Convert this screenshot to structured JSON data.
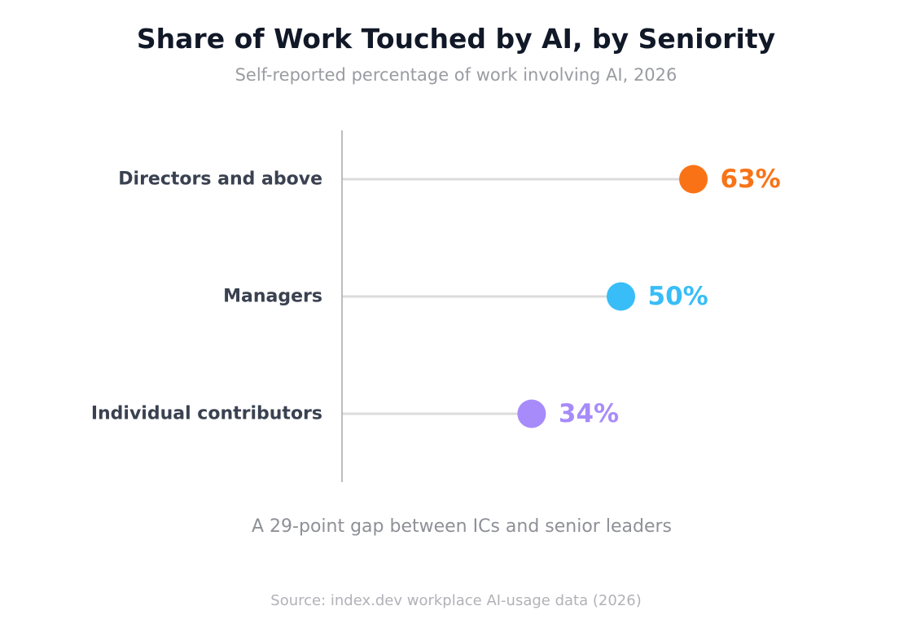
{
  "chart_data": {
    "type": "lollipop",
    "title": "Share of Work Touched by AI, by Seniority",
    "subtitle": "Self-reported percentage of work involving AI, 2026",
    "categories": [
      "Directors and above",
      "Managers",
      "Individual contributors"
    ],
    "values": [
      63,
      50,
      34
    ],
    "value_labels": [
      "63%",
      "50%",
      "34%"
    ],
    "colors": [
      "#f97316",
      "#38bdf8",
      "#a78bfa"
    ],
    "unit": "%",
    "xlim": [
      0,
      100
    ],
    "grid": false,
    "annotation": "A 29-point gap between ICs and senior leaders",
    "source": "Source: index.dev workplace AI-usage data (2026)"
  }
}
